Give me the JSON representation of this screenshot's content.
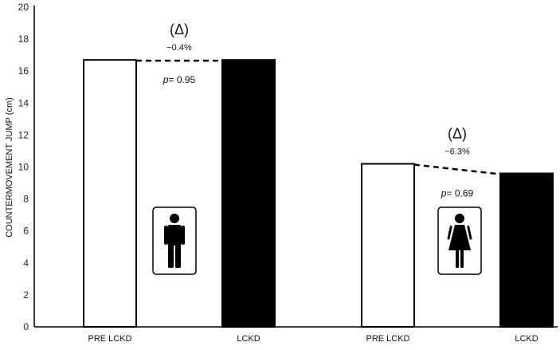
{
  "chart_data": {
    "type": "bar",
    "ylabel": "COUNTERMOVEMENT JUMP (cm)",
    "ylim": [
      0,
      20
    ],
    "yticks": [
      0,
      2,
      4,
      6,
      8,
      10,
      12,
      14,
      16,
      18,
      20
    ],
    "grid": false,
    "bars": [
      {
        "category": "PRE LCKD",
        "value": 16.7,
        "fill": "#ffffff",
        "group": "male"
      },
      {
        "category": "LCKD",
        "value": 16.7,
        "fill": "#000000",
        "group": "male"
      },
      {
        "category": "PRE LCKD",
        "value": 10.2,
        "fill": "#ffffff",
        "group": "female"
      },
      {
        "category": "LCKD",
        "value": 9.6,
        "fill": "#000000",
        "group": "female"
      }
    ],
    "annotations": [
      {
        "group": "male",
        "delta_label": "(Δ)",
        "change": "−0.4%",
        "p_prefix": "p",
        "p_rest": "= 0.95",
        "icon": "male-person-icon"
      },
      {
        "group": "female",
        "delta_label": "(Δ)",
        "change": "−6.3%",
        "p_prefix": "p",
        "p_rest": "= 0.69",
        "icon": "female-person-icon"
      }
    ]
  }
}
